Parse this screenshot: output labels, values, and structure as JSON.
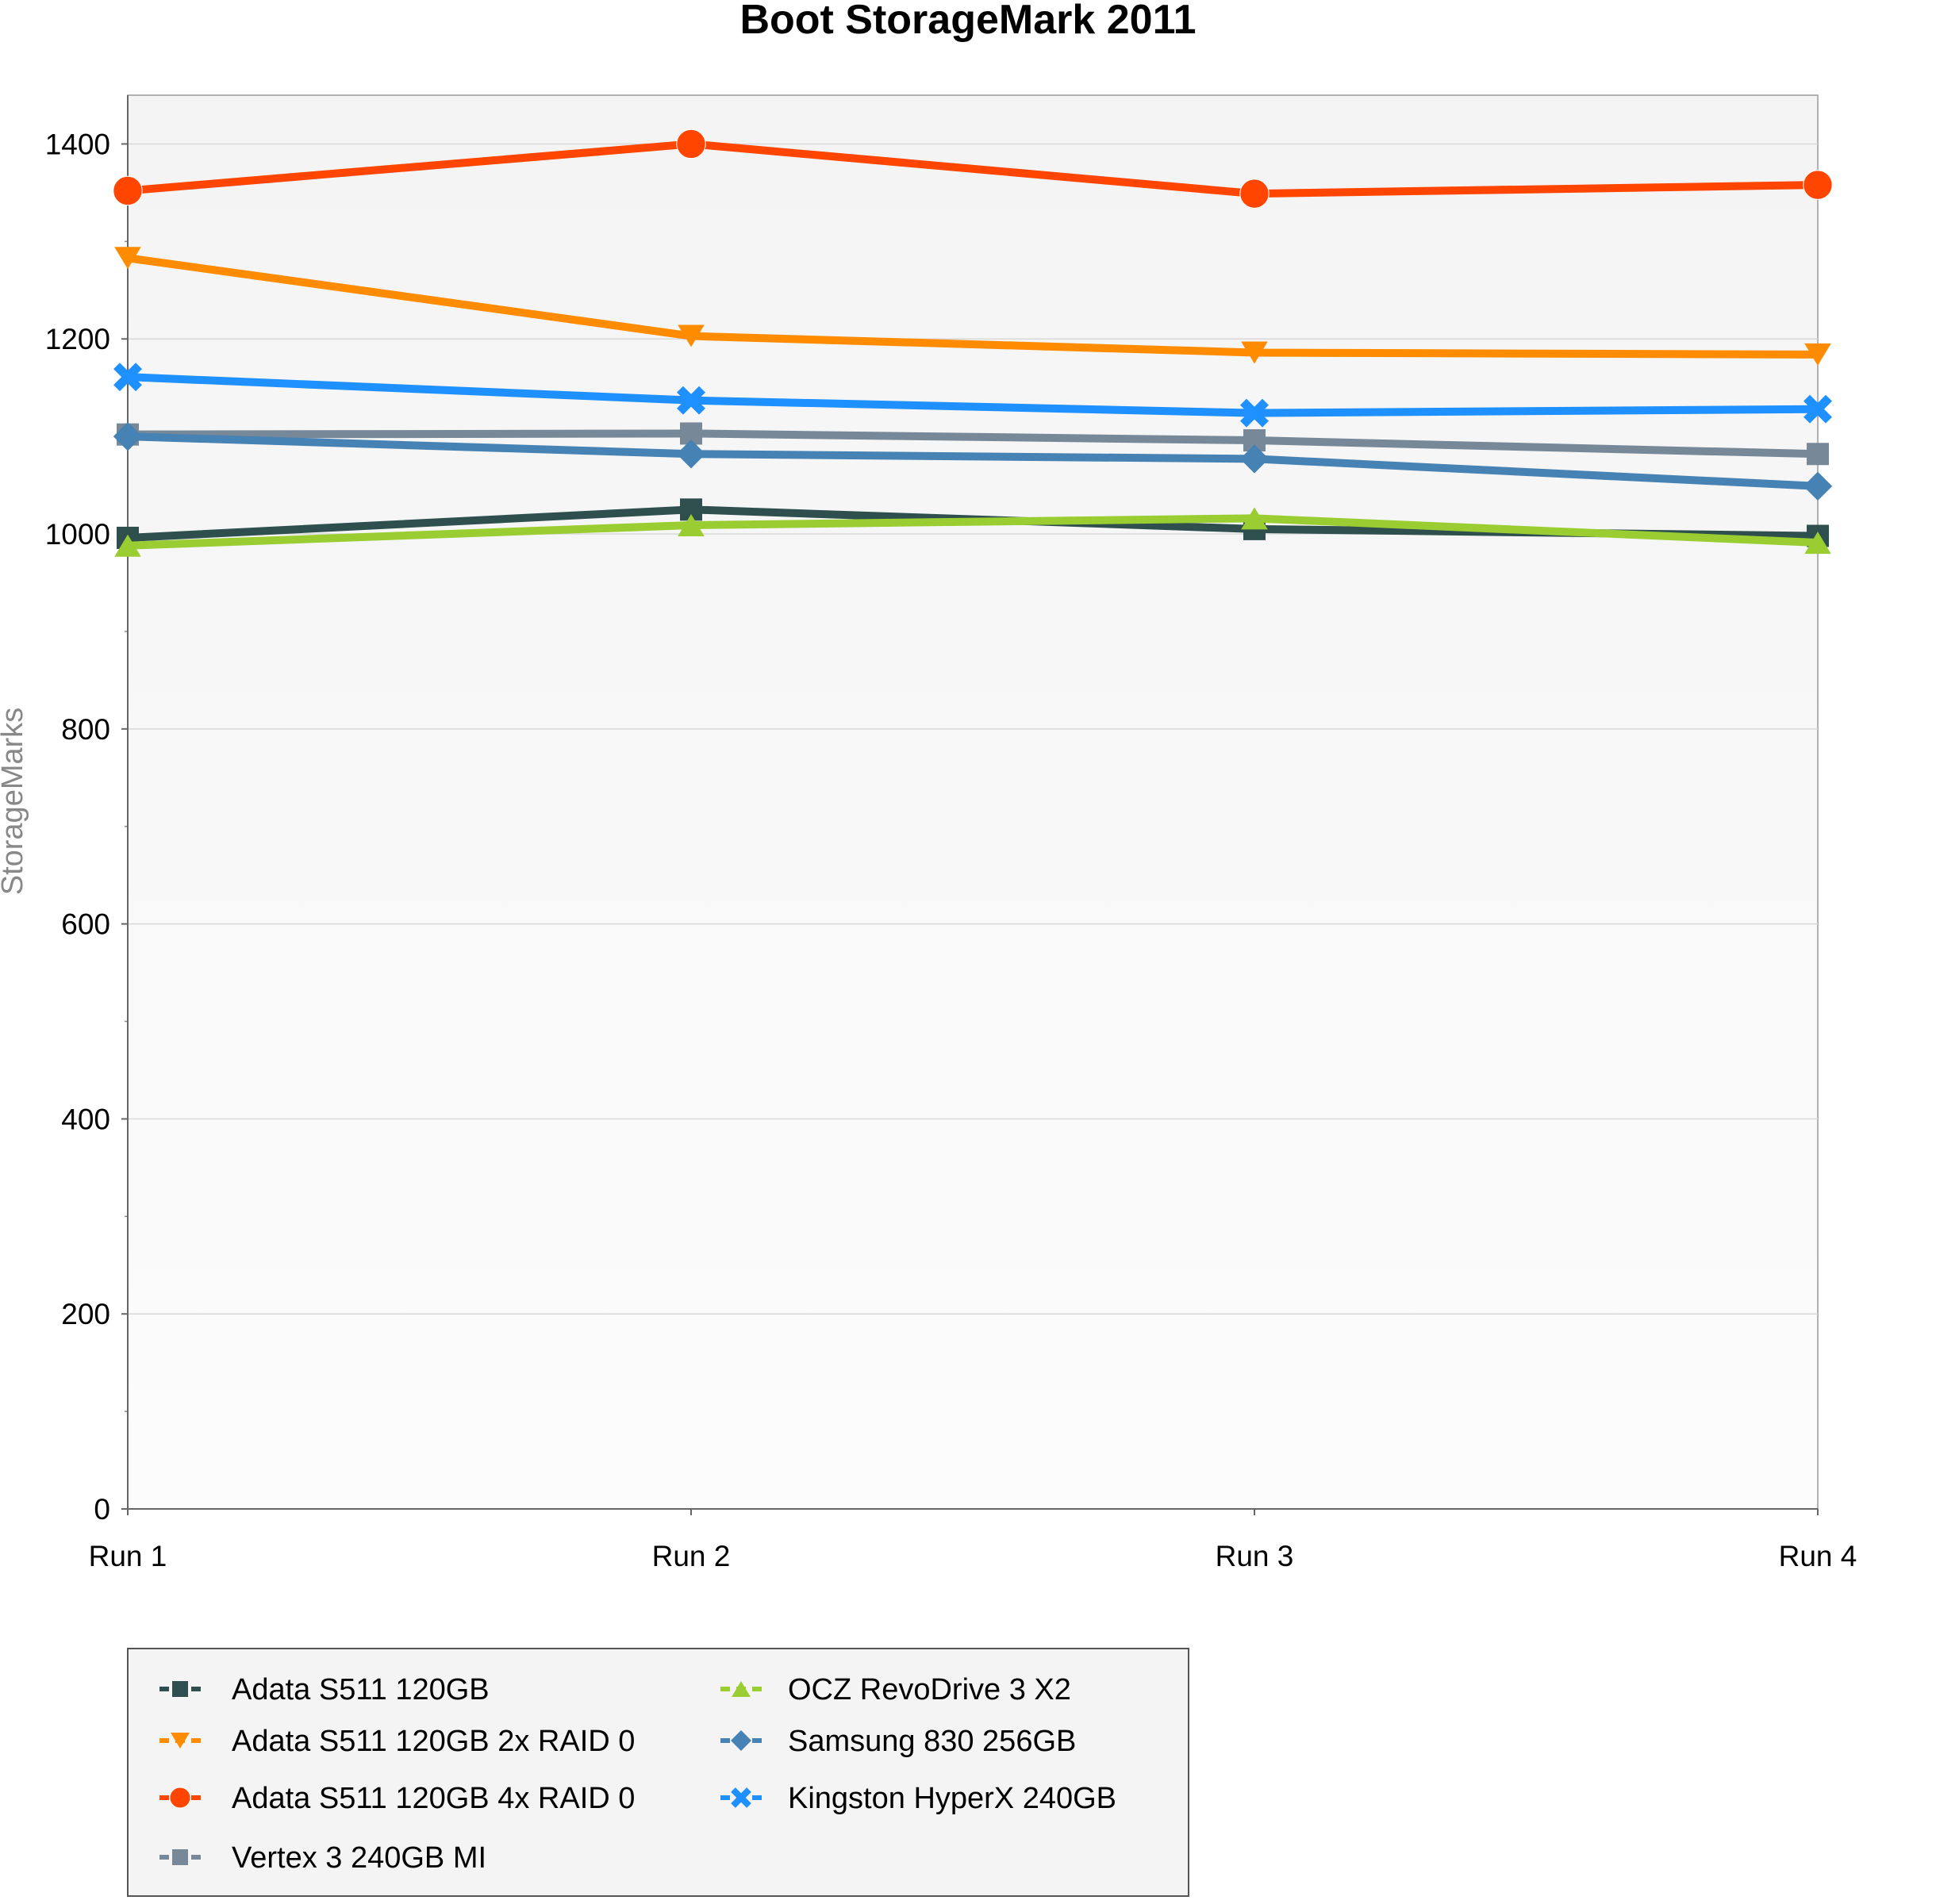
{
  "chart_data": {
    "type": "line",
    "title": "Boot StorageMark 2011",
    "xlabel": "",
    "ylabel": "StorageMarks",
    "categories": [
      "Run 1",
      "Run 2",
      "Run 3",
      "Run 4"
    ],
    "ylim": [
      0,
      1450
    ],
    "yticks": [
      0,
      200,
      400,
      600,
      800,
      1000,
      1200,
      1400
    ],
    "grid": true,
    "legend_position": "bottom-left",
    "series": [
      {
        "name": "Adata S511 120GB",
        "color": "#2f4f4f",
        "marker": "square",
        "values": [
          996,
          1025,
          1005,
          998
        ]
      },
      {
        "name": "Adata S511 120GB 2x RAID 0",
        "color": "#ff8c00",
        "marker": "triangle-down",
        "values": [
          1283,
          1203,
          1186,
          1184
        ]
      },
      {
        "name": "Adata S511 120GB 4x RAID 0",
        "color": "#ff4500",
        "marker": "circle",
        "values": [
          1352,
          1400,
          1349,
          1358
        ]
      },
      {
        "name": "Vertex 3 240GB MI",
        "color": "#778899",
        "marker": "square",
        "values": [
          1102,
          1103,
          1096,
          1082
        ]
      },
      {
        "name": "OCZ RevoDrive 3 X2",
        "color": "#9acd32",
        "marker": "triangle-up",
        "values": [
          988,
          1009,
          1016,
          991
        ]
      },
      {
        "name": "Samsung 830 256GB",
        "color": "#4682b4",
        "marker": "diamond",
        "values": [
          1100,
          1082,
          1077,
          1049
        ]
      },
      {
        "name": "Kingston HyperX 240GB",
        "color": "#1e90ff",
        "marker": "x",
        "values": [
          1161,
          1137,
          1124,
          1128
        ]
      }
    ]
  }
}
